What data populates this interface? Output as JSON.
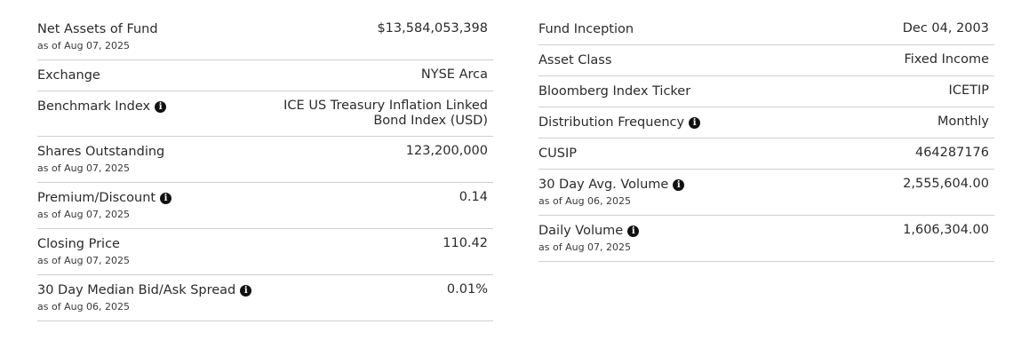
{
  "left": [
    {
      "label": "Net Assets of Fund",
      "asof": "as of Aug 07, 2025",
      "value": "$13,584,053,398",
      "info": false
    },
    {
      "label": "Exchange",
      "asof": "",
      "value": "NYSE Arca",
      "info": false
    },
    {
      "label": "Benchmark Index",
      "asof": "",
      "value": "ICE US Treasury Inflation Linked\nBond Index (USD)",
      "info": true
    },
    {
      "label": "Shares Outstanding",
      "asof": "as of Aug 07, 2025",
      "value": "123,200,000",
      "info": false
    },
    {
      "label": "Premium/Discount",
      "asof": "as of Aug 07, 2025",
      "value": "0.14",
      "info": true
    },
    {
      "label": "Closing Price",
      "asof": "as of Aug 07, 2025",
      "value": "110.42",
      "info": false
    },
    {
      "label": "30 Day Median Bid/Ask Spread",
      "asof": "as of Aug 06, 2025",
      "value": "0.01%",
      "info": true
    }
  ],
  "right": [
    {
      "label": "Fund Inception",
      "asof": "",
      "value": "Dec 04, 2003",
      "info": false
    },
    {
      "label": "Asset Class",
      "asof": "",
      "value": "Fixed Income",
      "info": false
    },
    {
      "label": "Bloomberg Index Ticker",
      "asof": "",
      "value": "ICETIP",
      "info": false
    },
    {
      "label": "Distribution Frequency",
      "asof": "",
      "value": "Monthly",
      "info": true
    },
    {
      "label": "CUSIP",
      "asof": "",
      "value": "464287176",
      "info": false
    },
    {
      "label": "30 Day Avg. Volume",
      "asof": "as of Aug 06, 2025",
      "value": "2,555,604.00",
      "info": true
    },
    {
      "label": "Daily Volume",
      "asof": "as of Aug 07, 2025",
      "value": "1,606,304.00",
      "info": true
    }
  ],
  "icons": {
    "info": "info-icon",
    "info_glyph": "i"
  }
}
